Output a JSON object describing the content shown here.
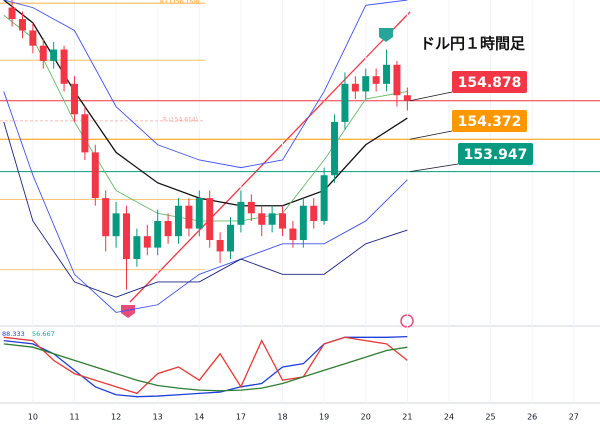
{
  "chart_data": [
    {
      "type": "candlestick",
      "title": "ドル円１時間足",
      "xlim": [
        -0.79,
        13.63
      ],
      "ylim": [
        152.0,
        156.2
      ],
      "xticks": [
        {
          "value": 0,
          "label": "10"
        },
        {
          "value": 1,
          "label": "11"
        },
        {
          "value": 2,
          "label": "12"
        },
        {
          "value": 3,
          "label": "13"
        },
        {
          "value": 4,
          "label": "14"
        },
        {
          "value": 5,
          "label": "17"
        },
        {
          "value": 6,
          "label": "18"
        },
        {
          "value": 7,
          "label": "19"
        },
        {
          "value": 8,
          "label": "20"
        },
        {
          "value": 9,
          "label": "21"
        },
        {
          "value": 10,
          "label": "24"
        },
        {
          "value": 11,
          "label": "25"
        },
        {
          "value": 12,
          "label": "26"
        },
        {
          "value": 13,
          "label": "27"
        }
      ],
      "x": [
        -0.5,
        -0.25,
        0,
        0.25,
        0.5,
        0.75,
        1,
        1.25,
        1.5,
        1.75,
        2,
        2.25,
        2.5,
        2.75,
        3,
        3.25,
        3.5,
        3.75,
        4,
        4.25,
        4.5,
        4.75,
        5,
        5.25,
        5.5,
        5.75,
        6,
        6.25,
        6.5,
        6.75,
        7,
        7.25,
        7.5,
        7.75,
        8,
        8.25,
        8.5,
        8.75,
        9
      ],
      "open": [
        156.1,
        155.95,
        155.8,
        155.6,
        155.4,
        155.55,
        155.1,
        154.7,
        154.2,
        153.6,
        153.1,
        153.4,
        152.8,
        153.1,
        152.95,
        153.3,
        153.1,
        153.5,
        153.2,
        153.6,
        153.05,
        152.9,
        153.25,
        153.55,
        153.4,
        153.25,
        153.4,
        153.2,
        153.05,
        153.5,
        153.3,
        153.9,
        154.6,
        155.1,
        155.0,
        155.2,
        155.1,
        155.35,
        154.95
      ],
      "high": [
        156.2,
        156.05,
        155.9,
        155.7,
        155.65,
        155.6,
        155.2,
        154.8,
        154.3,
        153.7,
        153.55,
        153.5,
        153.2,
        153.25,
        153.45,
        153.4,
        153.6,
        153.6,
        153.7,
        153.7,
        153.15,
        153.35,
        153.7,
        153.65,
        153.5,
        153.5,
        153.5,
        153.3,
        153.6,
        153.6,
        154.0,
        154.7,
        155.25,
        155.2,
        155.3,
        155.3,
        155.55,
        155.4,
        155.05
      ],
      "low": [
        155.85,
        155.7,
        155.5,
        155.3,
        155.3,
        155.0,
        154.6,
        154.1,
        153.5,
        152.9,
        152.95,
        152.4,
        152.7,
        152.85,
        152.85,
        153.0,
        153.0,
        153.1,
        153.1,
        152.95,
        152.75,
        152.8,
        153.15,
        153.3,
        153.1,
        153.15,
        153.1,
        152.95,
        152.95,
        153.2,
        153.25,
        153.8,
        154.5,
        154.9,
        154.9,
        155.0,
        155.0,
        154.8,
        154.75
      ],
      "close": [
        155.95,
        155.8,
        155.6,
        155.4,
        155.55,
        155.1,
        154.7,
        154.2,
        153.6,
        153.1,
        153.4,
        152.8,
        153.1,
        152.95,
        153.3,
        153.1,
        153.5,
        153.2,
        153.6,
        153.05,
        152.9,
        153.25,
        153.55,
        153.4,
        153.25,
        153.4,
        153.2,
        153.05,
        153.5,
        153.3,
        153.9,
        154.6,
        155.1,
        155.0,
        155.2,
        155.1,
        155.35,
        154.95,
        154.88
      ],
      "up_color": "#089981",
      "down_color": "#f23645",
      "levels": [
        {
          "value": 156.159,
          "label": "R1 (156.159)",
          "color": "#ff9800"
        },
        {
          "value": 155.41,
          "color": "#ffb74d"
        },
        {
          "value": 154.614,
          "label": "P (154.614)",
          "color": "#f7a6a0"
        },
        {
          "value": 153.58,
          "color": "#ffb74d"
        },
        {
          "value": 152.66,
          "color": "#ffb74d"
        },
        {
          "value": 154.878,
          "color": "#f23645",
          "boxed": true
        },
        {
          "value": 154.372,
          "color": "#ff9800",
          "boxed": true
        },
        {
          "value": 153.947,
          "color": "#089981",
          "boxed": true
        }
      ],
      "lines": [
        {
          "color": "#111111",
          "x": [
            -0.7,
            0,
            1,
            2,
            3,
            4,
            5,
            6,
            7,
            8,
            9
          ],
          "values": [
            156.2,
            155.9,
            155.0,
            154.2,
            153.8,
            153.6,
            153.5,
            153.5,
            153.7,
            154.3,
            154.65
          ]
        },
        {
          "color": "#66bb6a",
          "x": [
            -0.7,
            0,
            1,
            2,
            3,
            4,
            5,
            6,
            7,
            8,
            9
          ],
          "values": [
            156.0,
            155.7,
            154.6,
            153.7,
            153.4,
            153.3,
            153.3,
            153.4,
            154.1,
            154.9,
            155.0
          ]
        },
        {
          "color": "#3f51f5",
          "x": [
            -0.7,
            0,
            1,
            2,
            3,
            4,
            5,
            6,
            7,
            8,
            9
          ],
          "values": [
            156.2,
            156.1,
            155.8,
            154.8,
            154.3,
            154.1,
            154.0,
            154.1,
            155.0,
            156.13,
            156.2
          ]
        },
        {
          "color": "#3f51f5",
          "x": [
            -0.7,
            0,
            1,
            2,
            3,
            4,
            5,
            6,
            7,
            8,
            9
          ],
          "values": [
            155.0,
            153.9,
            152.6,
            152.1,
            152.2,
            152.6,
            152.8,
            153.0,
            153.0,
            153.3,
            153.84
          ]
        },
        {
          "color": "#1a237e",
          "x": [
            -0.7,
            0,
            1,
            2,
            3,
            4,
            5,
            6,
            7,
            8,
            9
          ],
          "values": [
            154.6,
            153.3,
            152.5,
            152.3,
            152.5,
            152.5,
            152.8,
            152.6,
            152.6,
            153.0,
            153.18
          ]
        }
      ]
    },
    {
      "type": "line",
      "xlim": [
        -0.79,
        13.63
      ],
      "ylim": [
        0,
        100
      ],
      "x": [
        -0.7,
        0,
        0.5,
        1,
        1.5,
        2,
        2.5,
        3,
        3.5,
        4,
        4.5,
        5,
        5.5,
        6,
        6.5,
        7,
        7.5,
        8,
        8.5,
        9
      ],
      "series": [
        {
          "color": "#1e3fd8",
          "values": [
            90,
            85,
            70,
            45,
            20,
            8,
            5,
            6,
            8,
            10,
            12,
            20,
            25,
            50,
            55,
            85,
            95,
            95,
            95,
            96
          ]
        },
        {
          "color": "#e53935",
          "values": [
            95,
            90,
            60,
            40,
            30,
            20,
            10,
            40,
            50,
            30,
            70,
            20,
            90,
            30,
            35,
            85,
            95,
            90,
            85,
            60
          ]
        },
        {
          "color": "#2e7d32",
          "values": [
            85,
            80,
            70,
            60,
            50,
            40,
            30,
            22,
            18,
            15,
            14,
            15,
            18,
            25,
            35,
            45,
            55,
            65,
            75,
            80
          ]
        }
      ],
      "readouts": [
        {
          "value": 88.333,
          "color": "#1e3fd8"
        },
        {
          "value": 56.667,
          "color": "#26a69a"
        }
      ]
    }
  ]
}
